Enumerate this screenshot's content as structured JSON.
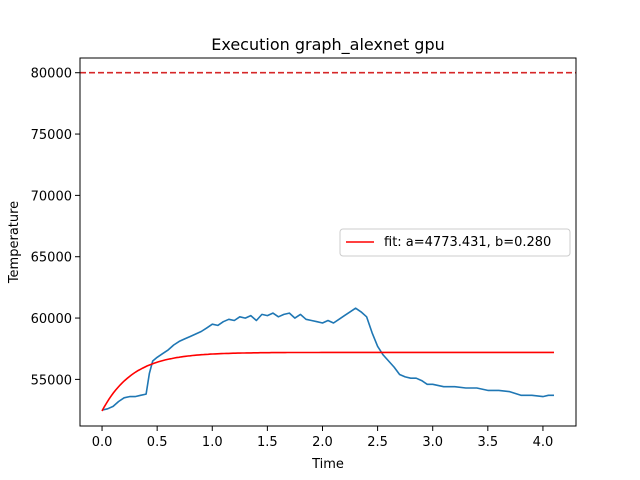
{
  "chart_data": {
    "type": "line",
    "title": "Execution graph_alexnet gpu",
    "xlabel": "Time",
    "ylabel": "Temperature",
    "xlim": [
      -0.2,
      4.3
    ],
    "ylim": [
      51200,
      81200
    ],
    "xticks": [
      0.0,
      0.5,
      1.0,
      1.5,
      2.0,
      2.5,
      3.0,
      3.5,
      4.0
    ],
    "xtick_labels": [
      "0.0",
      "0.5",
      "1.0",
      "1.5",
      "2.0",
      "2.5",
      "3.0",
      "3.5",
      "4.0"
    ],
    "yticks": [
      55000,
      60000,
      65000,
      70000,
      75000,
      80000
    ],
    "ytick_labels": [
      "55000",
      "60000",
      "65000",
      "70000",
      "75000",
      "80000"
    ],
    "grid": false,
    "legend": {
      "placement": "center-right",
      "entries": [
        "fit: a=4773.431, b=0.280"
      ]
    },
    "threshold": {
      "y": 80000,
      "color": "#d62728",
      "style": "dashed"
    },
    "series": [
      {
        "kind": "measured",
        "color": "#1f77b4",
        "x": [
          0.0,
          0.05,
          0.1,
          0.15,
          0.2,
          0.25,
          0.3,
          0.35,
          0.4,
          0.43,
          0.46,
          0.5,
          0.55,
          0.6,
          0.65,
          0.7,
          0.75,
          0.8,
          0.85,
          0.9,
          0.95,
          1.0,
          1.05,
          1.1,
          1.15,
          1.2,
          1.25,
          1.3,
          1.35,
          1.4,
          1.45,
          1.5,
          1.55,
          1.6,
          1.65,
          1.7,
          1.75,
          1.8,
          1.85,
          1.9,
          1.95,
          2.0,
          2.05,
          2.1,
          2.15,
          2.2,
          2.25,
          2.3,
          2.35,
          2.4,
          2.45,
          2.5,
          2.55,
          2.6,
          2.65,
          2.7,
          2.75,
          2.8,
          2.85,
          2.9,
          2.95,
          3.0,
          3.1,
          3.2,
          3.3,
          3.4,
          3.5,
          3.6,
          3.7,
          3.8,
          3.9,
          4.0,
          4.05,
          4.1
        ],
        "y": [
          52500,
          52600,
          52800,
          53200,
          53500,
          53600,
          53600,
          53700,
          53800,
          55500,
          56500,
          56800,
          57100,
          57400,
          57800,
          58100,
          58300,
          58500,
          58700,
          58900,
          59200,
          59500,
          59400,
          59700,
          59900,
          59800,
          60100,
          60000,
          60200,
          59800,
          60300,
          60200,
          60400,
          60100,
          60300,
          60400,
          60000,
          60300,
          59900,
          59800,
          59700,
          59600,
          59800,
          59600,
          59900,
          60200,
          60500,
          60800,
          60500,
          60100,
          58800,
          57700,
          57000,
          56500,
          56000,
          55400,
          55200,
          55100,
          55100,
          54900,
          54600,
          54600,
          54400,
          54400,
          54300,
          54300,
          54100,
          54100,
          54000,
          53700,
          53700,
          53600,
          53700,
          53700
        ]
      },
      {
        "kind": "fit",
        "name": "fit: a=4773.431, b=0.280",
        "color": "#ff0000",
        "model": "y = c - a*exp(-x/b)",
        "a": 4773.431,
        "b": 0.28,
        "c": 57200,
        "x_range": [
          0.0,
          4.1
        ]
      }
    ]
  }
}
